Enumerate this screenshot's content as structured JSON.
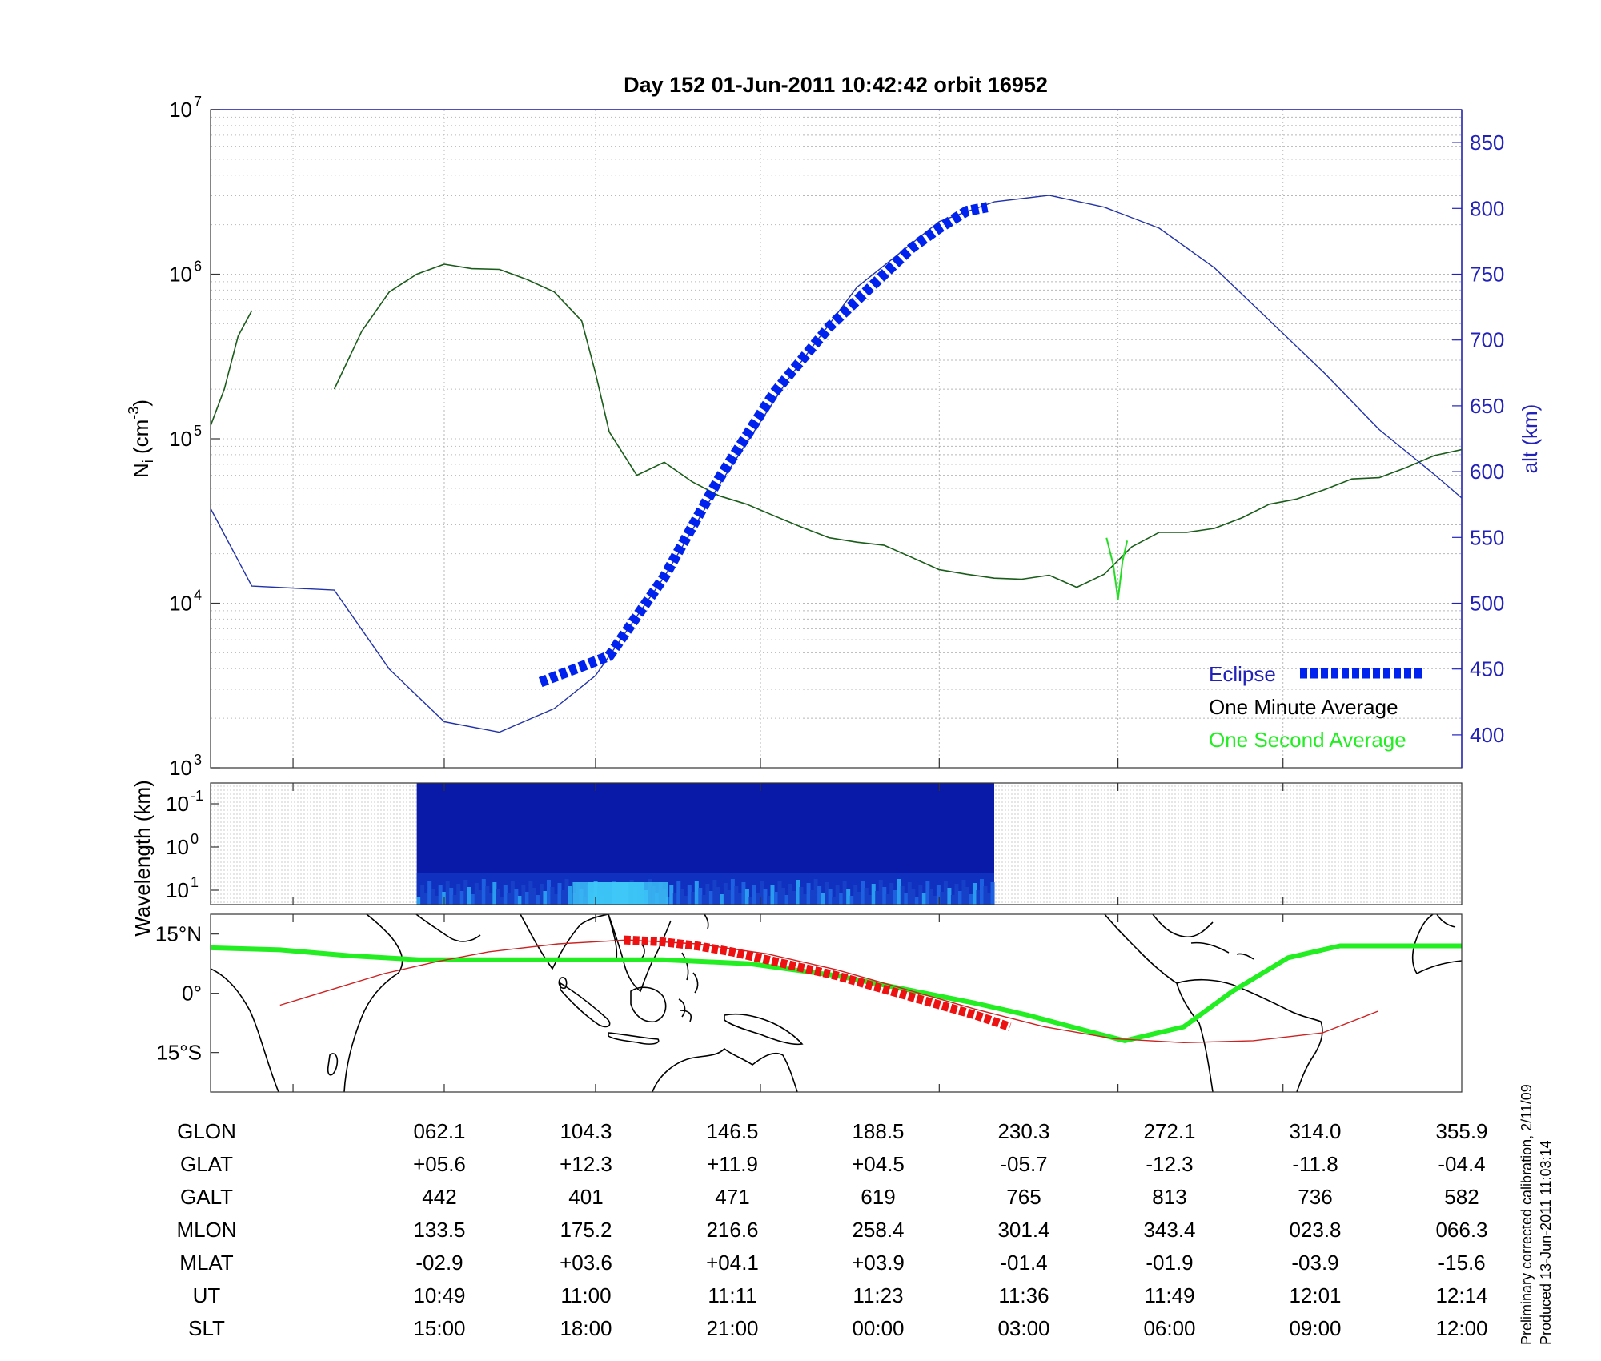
{
  "title": "Day 152  01-Jun-2011 10:42:42   orbit 16952",
  "footnote": [
    "Preliminary corrected calibration, 2/11/09",
    "Produced 13-Jun-2011 11:03:14"
  ],
  "colors": {
    "density_minute": "#1a5c1a",
    "density_second": "#22dd22",
    "altitude": "#2233aa",
    "eclipse": "#0022ee",
    "ground_track": "#22ee22",
    "orbit_track": "#cc2222",
    "eclipse_track": "#ee1111",
    "axis_blue": "#2222bb"
  },
  "chart_data": [
    {
      "type": "line",
      "panel": "density",
      "ylabel_left": "N_i (cm^-3)",
      "ylabel_right": "alt (km)",
      "yscale_left": "log",
      "ylim_left": [
        1000,
        10000000
      ],
      "yticks_left": [
        {
          "base": "10",
          "exp": "3"
        },
        {
          "base": "10",
          "exp": "4"
        },
        {
          "base": "10",
          "exp": "5"
        },
        {
          "base": "10",
          "exp": "6"
        },
        {
          "base": "10",
          "exp": "7"
        }
      ],
      "ylim_right": [
        375,
        875
      ],
      "yticks_right": [
        "400",
        "450",
        "500",
        "550",
        "600",
        "650",
        "700",
        "750",
        "800",
        "850"
      ],
      "xlim": [
        "10:43",
        "12:14"
      ],
      "grid": true,
      "legend": {
        "position": "bottom-right",
        "entries": [
          "Eclipse",
          "One Minute Average",
          "One Second Average"
        ]
      },
      "series": [
        {
          "name": "One Minute Average",
          "x": [
            "10:42:42",
            "10:43",
            "10:44",
            "10:45",
            "10:46"
          ],
          "y": [
            90000,
            120000,
            200000,
            420000,
            600000
          ]
        },
        {
          "name": "One Minute Average",
          "x": [
            "10:52",
            "10:54",
            "10:56",
            "10:58",
            "11:00",
            "11:02",
            "11:04",
            "11:06",
            "11:08",
            "11:10",
            "11:11",
            "11:12",
            "11:14",
            "11:16",
            "11:18",
            "11:20",
            "11:22",
            "11:24",
            "11:26",
            "11:28",
            "11:30",
            "11:32",
            "11:34",
            "11:36",
            "11:38",
            "11:40",
            "11:42",
            "11:44",
            "11:46",
            "11:48",
            "11:50",
            "11:52",
            "11:54",
            "11:56",
            "11:58",
            "12:00",
            "12:02",
            "12:04",
            "12:06",
            "12:08",
            "12:10",
            "12:12",
            "12:14"
          ],
          "y": [
            200000,
            450000,
            780000,
            1000000,
            1150000,
            1080000,
            1070000,
            930000,
            780000,
            520000,
            250000,
            110000,
            60000,
            72000,
            55000,
            45000,
            40000,
            34000,
            29000,
            25000,
            23500,
            22500,
            19000,
            16000,
            15000,
            14200,
            14000,
            14800,
            12500,
            15000,
            22000,
            27000,
            27000,
            28500,
            33000,
            40000,
            43000,
            49000,
            57000,
            58000,
            67000,
            79000,
            86000
          ]
        },
        {
          "name": "One Second Average",
          "x": [
            "11:48:10",
            "11:48:40",
            "11:49:00",
            "11:49:20",
            "11:49:40"
          ],
          "y": [
            25000,
            17000,
            10500,
            18000,
            24000
          ]
        },
        {
          "name": "alt",
          "axis": "right",
          "x": [
            "10:42:42",
            "10:46",
            "10:52",
            "10:56",
            "11:00",
            "11:04",
            "11:08",
            "11:11",
            "11:16",
            "11:20",
            "11:25",
            "11:30",
            "11:36",
            "11:40",
            "11:44",
            "11:48",
            "11:52",
            "11:56",
            "12:00",
            "12:04",
            "12:08",
            "12:12",
            "12:14"
          ],
          "y": [
            578,
            513,
            510,
            450,
            410,
            402,
            420,
            445,
            520,
            590,
            670,
            740,
            790,
            805,
            810,
            801,
            785,
            755,
            715,
            675,
            632,
            598,
            580
          ]
        },
        {
          "name": "Eclipse",
          "axis": "right",
          "x": [
            "11:07",
            "11:12",
            "11:16",
            "11:20",
            "11:24",
            "11:28",
            "11:32",
            "11:34",
            "11:36",
            "11:38",
            "11:39:30"
          ],
          "y": [
            440,
            460,
            520,
            595,
            660,
            710,
            750,
            770,
            785,
            798,
            801
          ]
        }
      ]
    },
    {
      "type": "heatmap",
      "panel": "spectrogram",
      "ylabel": "Wavelength (km)",
      "yscale": "log",
      "yticks": [
        {
          "base": "10",
          "exp": "-1"
        },
        {
          "base": "10",
          "exp": "0"
        },
        {
          "base": "10",
          "exp": "1"
        }
      ],
      "x_range": [
        "10:58",
        "11:40"
      ],
      "colormap": "jet (dark blue to cyan)"
    },
    {
      "type": "map",
      "panel": "ground-track",
      "yticks": [
        "15°N",
        "0°",
        "15°S"
      ],
      "lon_range": [
        20,
        380
      ],
      "lat_range": [
        -25,
        20
      ],
      "series": [
        {
          "name": "ground track",
          "lon": [
            20,
            40,
            60,
            80,
            100,
            120,
            150,
            175,
            200,
            220,
            240,
            255,
            270,
            283,
            300,
            314,
            330,
            345,
            356,
            380
          ],
          "lat": [
            11.5,
            11,
            9.5,
            8.5,
            8.5,
            8.5,
            8.5,
            7.5,
            4.5,
            1,
            -2.5,
            -5.5,
            -9,
            -12,
            -8.5,
            0.5,
            9,
            12,
            12,
            12
          ]
        },
        {
          "name": "orbit track",
          "lon": [
            40,
            55,
            70,
            85,
            100,
            120,
            140,
            160,
            180,
            200,
            220,
            240,
            260,
            280,
            300,
            320,
            340,
            356
          ],
          "lat": [
            -3,
            1,
            5,
            8,
            10.5,
            12.5,
            13.5,
            12.5,
            10,
            6,
            1,
            -4,
            -8.5,
            -11.5,
            -12.5,
            -12,
            -10,
            -4.5
          ]
        },
        {
          "name": "eclipse",
          "lon": [
            139,
            150,
            160,
            170,
            180,
            190,
            200,
            210,
            220,
            230,
            240,
            250
          ],
          "lat": [
            13.5,
            13,
            12,
            10.5,
            8.5,
            6.5,
            4.5,
            2,
            -0.5,
            -3,
            -5.5,
            -8.5
          ]
        }
      ]
    }
  ],
  "table": {
    "rows": [
      {
        "label": "GLON",
        "values": [
          "062.1",
          "104.3",
          "146.5",
          "188.5",
          "230.3",
          "272.1",
          "314.0",
          "355.9"
        ]
      },
      {
        "label": "GLAT",
        "values": [
          "+05.6",
          "+12.3",
          "+11.9",
          "+04.5",
          "-05.7",
          "-12.3",
          "-11.8",
          "-04.4"
        ]
      },
      {
        "label": "GALT",
        "values": [
          "442",
          "401",
          "471",
          "619",
          "765",
          "813",
          "736",
          "582"
        ]
      },
      {
        "label": "MLON",
        "values": [
          "133.5",
          "175.2",
          "216.6",
          "258.4",
          "301.4",
          "343.4",
          "023.8",
          "066.3"
        ]
      },
      {
        "label": "MLAT",
        "values": [
          "-02.9",
          "+03.6",
          "+04.1",
          "+03.9",
          "-01.4",
          "-01.9",
          "-03.9",
          "-15.6"
        ]
      },
      {
        "label": "UT",
        "values": [
          "10:49",
          "11:00",
          "11:11",
          "11:23",
          "11:36",
          "11:49",
          "12:01",
          "12:14"
        ]
      },
      {
        "label": "SLT",
        "values": [
          "15:00",
          "18:00",
          "21:00",
          "00:00",
          "03:00",
          "06:00",
          "09:00",
          "12:00"
        ]
      }
    ]
  }
}
